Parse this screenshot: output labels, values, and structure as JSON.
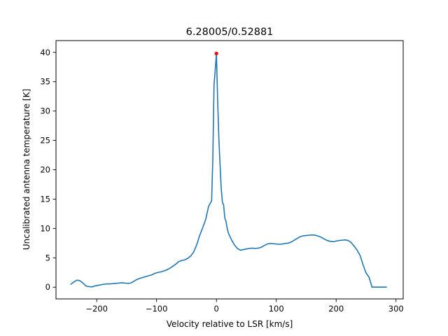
{
  "chart_data": {
    "type": "line",
    "title": "6.28005/0.52881",
    "xlabel": "Velocity relative to LSR [km/s]",
    "ylabel": "Uncalibrated antenna temperature [K]",
    "xlim": [
      -268,
      312
    ],
    "ylim": [
      -2,
      42
    ],
    "xticks": [
      -200,
      -100,
      0,
      100,
      200,
      300
    ],
    "xtick_labels": [
      "−200",
      "−100",
      "0",
      "100",
      "200",
      "300"
    ],
    "yticks": [
      0,
      5,
      10,
      15,
      20,
      25,
      30,
      35,
      40
    ],
    "ytick_labels": [
      "0",
      "5",
      "10",
      "15",
      "20",
      "25",
      "30",
      "35",
      "40"
    ],
    "grid": false,
    "line_color": "#1f77b4",
    "peak_color": "#ff0000",
    "peak": {
      "x": 0,
      "y": 39.8
    },
    "series": [
      {
        "x": [
          -243,
          -238,
          -233,
          -228,
          -223,
          -218,
          -213,
          -208,
          -203,
          -198,
          -193,
          -188,
          -183,
          -178,
          -173,
          -168,
          -163,
          -158,
          -153,
          -148,
          -143,
          -138,
          -133,
          -128,
          -123,
          -118,
          -113,
          -108,
          -103,
          -98,
          -93,
          -88,
          -83,
          -78,
          -73,
          -68,
          -63,
          -58,
          -53,
          -48,
          -43,
          -38,
          -33,
          -28,
          -23,
          -18,
          -13,
          -8,
          -6,
          -4,
          -2,
          0,
          2,
          4,
          6,
          8,
          10,
          12,
          14,
          16,
          18,
          20,
          25,
          30,
          35,
          40,
          45,
          50,
          55,
          60,
          65,
          70,
          75,
          80,
          85,
          90,
          95,
          100,
          105,
          110,
          115,
          120,
          125,
          130,
          135,
          140,
          145,
          150,
          155,
          160,
          165,
          170,
          175,
          180,
          185,
          190,
          195,
          200,
          205,
          210,
          215,
          220,
          225,
          230,
          235,
          240,
          245,
          250,
          255,
          260,
          265,
          270,
          275,
          280,
          284
        ],
        "y": [
          0.5,
          0.9,
          1.2,
          1.1,
          0.7,
          0.2,
          0.1,
          0.05,
          0.2,
          0.3,
          0.4,
          0.5,
          0.55,
          0.55,
          0.6,
          0.65,
          0.7,
          0.75,
          0.7,
          0.65,
          0.7,
          1.0,
          1.3,
          1.5,
          1.65,
          1.8,
          1.95,
          2.1,
          2.35,
          2.5,
          2.6,
          2.75,
          2.95,
          3.2,
          3.55,
          3.9,
          4.35,
          4.55,
          4.65,
          4.9,
          5.3,
          6.0,
          7.2,
          8.8,
          10.1,
          11.5,
          13.8,
          14.7,
          22.0,
          34.5,
          37.0,
          39.8,
          32.0,
          25.5,
          21.0,
          16.8,
          14.5,
          14.0,
          11.8,
          11.2,
          10.0,
          9.2,
          8.1,
          7.2,
          6.6,
          6.3,
          6.4,
          6.5,
          6.6,
          6.65,
          6.6,
          6.65,
          6.8,
          7.1,
          7.35,
          7.45,
          7.4,
          7.35,
          7.3,
          7.35,
          7.45,
          7.5,
          7.7,
          8.0,
          8.3,
          8.6,
          8.75,
          8.8,
          8.85,
          8.9,
          8.85,
          8.7,
          8.5,
          8.2,
          7.95,
          7.8,
          7.75,
          7.85,
          7.95,
          8.0,
          8.05,
          7.95,
          7.6,
          7.0,
          6.3,
          5.4,
          3.8,
          2.4,
          1.7,
          0.0,
          0.0,
          0.0,
          0.0,
          0.0,
          0.0
        ]
      }
    ]
  }
}
